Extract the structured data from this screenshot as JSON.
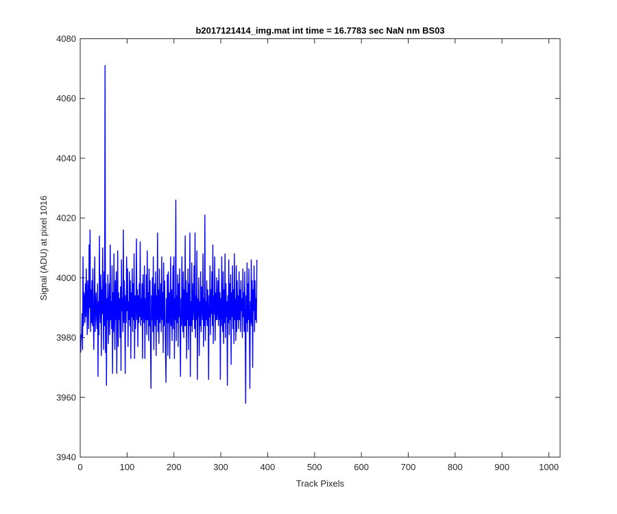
{
  "chart_data": {
    "type": "line",
    "title": "b2017121414_img.mat int time = 16.7783 sec  NaN nm BS03",
    "xlabel": "Track Pixels",
    "ylabel": "Signal (ADU) at pixel 1016",
    "xlim": [
      0,
      1024
    ],
    "ylim": [
      3940,
      4080
    ],
    "x_ticks": [
      "0",
      "100",
      "200",
      "300",
      "400",
      "500",
      "600",
      "700",
      "800",
      "900",
      "1000"
    ],
    "y_ticks": [
      "3940",
      "3960",
      "3980",
      "4000",
      "4020",
      "4040",
      "4060",
      "4080"
    ],
    "grid": false,
    "series": [
      {
        "color": "#0000ff",
        "x_start": 1,
        "x_step": 1,
        "values": [
          3975,
          3981,
          3980,
          3988,
          3976,
          4007,
          3984,
          3995,
          3993,
          3985,
          3998,
          3987,
          4003,
          3992,
          3981,
          3999,
          3994,
          3983,
          4011,
          3990,
          4016,
          3982,
          3996,
          3985,
          3999,
          3984,
          4003,
          3988,
          3976,
          3993,
          4007,
          3982,
          3990,
          3995,
          3986,
          3983,
          3998,
          3967,
          3992,
          3981,
          4014,
          3990,
          3985,
          4001,
          3974,
          3996,
          3988,
          4010,
          3989,
          3976,
          4002,
          3984,
          4071,
          3975,
          3998,
          3964,
          3993,
          3986,
          4001,
          3978,
          3990,
          3998,
          3981,
          4011,
          3986,
          3992,
          3983,
          4004,
          3968,
          3995,
          3982,
          4008,
          3989,
          3976,
          3999,
          3986,
          4002,
          3968,
          3988,
          4009,
          3977,
          3995,
          3986,
          3993,
          3980,
          3997,
          3969,
          4006,
          3989,
          3993,
          3982,
          4016,
          3985,
          3999,
          3991,
          3968,
          3994,
          3985,
          4007,
          3989,
          4003,
          3977,
          3992,
          3986,
          4002,
          3984,
          3999,
          3973,
          3995,
          3987,
          4003,
          3982,
          3998,
          3986,
          4008,
          3973,
          3994,
          3983,
          3990,
          4013,
          3986,
          3996,
          3977,
          3994,
          3985,
          3998,
          3987,
          4012,
          3984,
          3993,
          3986,
          3998,
          3973,
          4001,
          3990,
          3985,
          4004,
          3973,
          3993,
          3986,
          4001,
          3981,
          4009,
          3986,
          3995,
          3979,
          4003,
          3984,
          3999,
          3978,
          3963,
          3994,
          3986,
          4000,
          3982,
          4007,
          3976,
          3990,
          3998,
          3984,
          4002,
          3974,
          3994,
          3986,
          4015,
          3982,
          3996,
          3978,
          4003,
          3985,
          3988,
          3998,
          3982,
          4007,
          3986,
          3995,
          3975,
          4005,
          3984,
          3999,
          3989,
          3976,
          3965,
          3993,
          3985,
          4001,
          3974,
          4002,
          3985,
          3995,
          3973,
          3990,
          4007,
          3984,
          3996,
          3979,
          3990,
          4004,
          3983,
          4007,
          3973,
          3993,
          3986,
          4026,
          3979,
          3994,
          3985,
          4001,
          3977,
          3998,
          3987,
          4003,
          3982,
          3967,
          3993,
          3984,
          4007,
          3988,
          3982,
          4002,
          3980,
          3996,
          3984,
          4014,
          3984,
          3999,
          3973,
          3995,
          3986,
          4003,
          3976,
          3998,
          3984,
          4015,
          3967,
          3992,
          3984,
          4005,
          3982,
          3998,
          3986,
          3990,
          4004,
          3983,
          4015,
          3980,
          3994,
          3986,
          4009,
          3966,
          3993,
          3987,
          4000,
          3974,
          3992,
          3984,
          4002,
          3982,
          3997,
          3990,
          3986,
          4008,
          3977,
          3993,
          3984,
          4021,
          3979,
          3992,
          3986,
          3999,
          3984,
          3996,
          3989,
          3966,
          3994,
          3987,
          4004,
          3981,
          3996,
          3988,
          4002,
          3984,
          4011,
          3978,
          3994,
          3988,
          4007,
          3979,
          3995,
          3986,
          4000,
          3986,
          3989,
          3999,
          3984,
          4003,
          3986,
          3995,
          3966,
          3993,
          3984,
          4007,
          3988,
          3982,
          4002,
          3978,
          3996,
          3985,
          4008,
          3980,
          3998,
          3987,
          3992,
          3964,
          3994,
          3985,
          4006,
          3981,
          3998,
          3986,
          4001,
          3971,
          3995,
          3987,
          4004,
          3983,
          3996,
          3978,
          4008,
          3986,
          3993,
          3979,
          4004,
          3982,
          3999,
          3986,
          3994,
          3983,
          4002,
          3986,
          3996,
          3982,
          3999,
          3989,
          3993,
          3980,
          4003,
          3987,
          3995,
          3982,
          4002,
          3986,
          3958,
          3994,
          3985,
          4005,
          3982,
          3998,
          3986,
          4003,
          3984,
          3963,
          3992,
          3985,
          4006,
          3984,
          3999,
          3970,
          3996,
          3989,
          4004,
          3982,
          3999,
          3986,
          3993,
          3985,
          4006
        ]
      }
    ]
  }
}
